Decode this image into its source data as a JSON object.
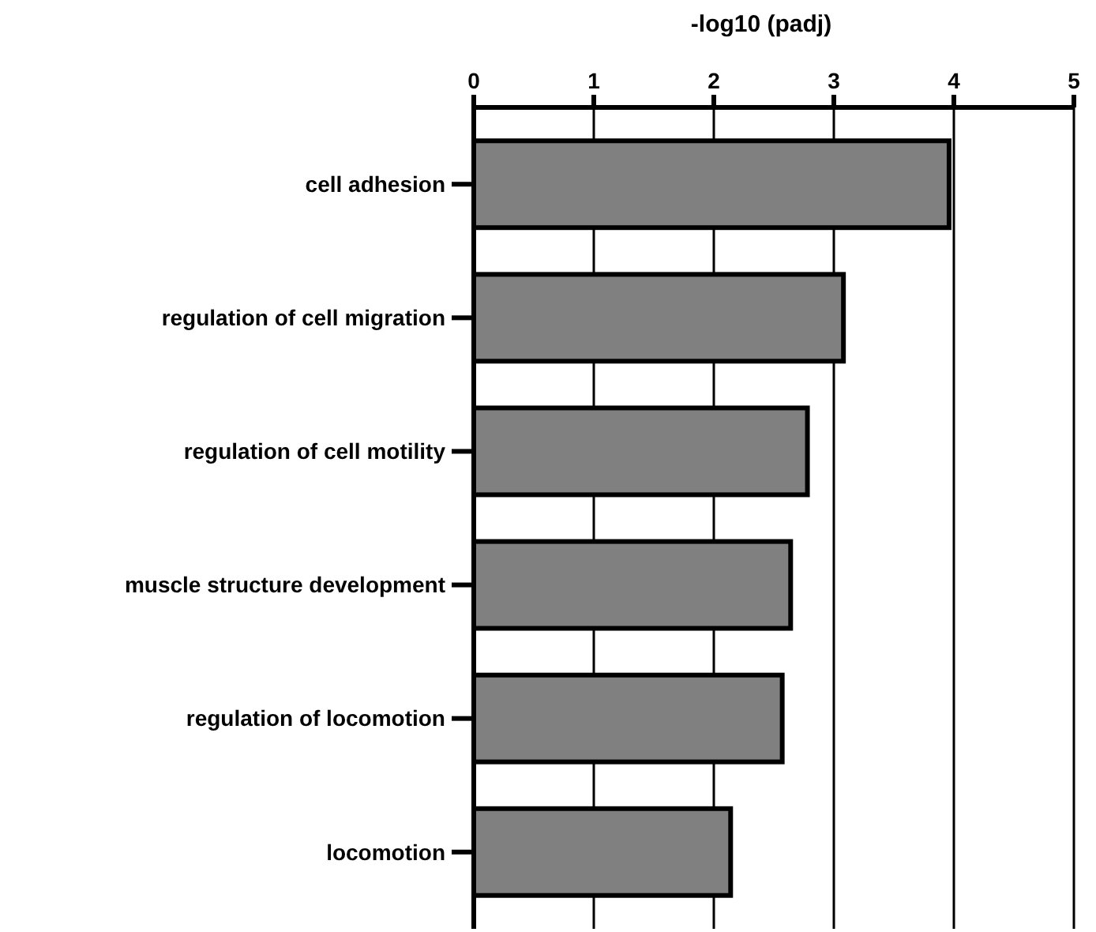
{
  "chart_data": {
    "type": "bar",
    "orientation": "horizontal",
    "xlabel": "-log10 (padj)",
    "categories": [
      "cell adhesion",
      "regulation of cell migration",
      "regulation of cell motility",
      "muscle structure development",
      "regulation of locomotion",
      "locomotion"
    ],
    "values": [
      3.96,
      3.08,
      2.78,
      2.64,
      2.57,
      2.14
    ],
    "color": "#808080",
    "xlim": [
      0,
      5
    ],
    "xticks": [
      0,
      1,
      2,
      3,
      4,
      5
    ],
    "grid": "x"
  }
}
